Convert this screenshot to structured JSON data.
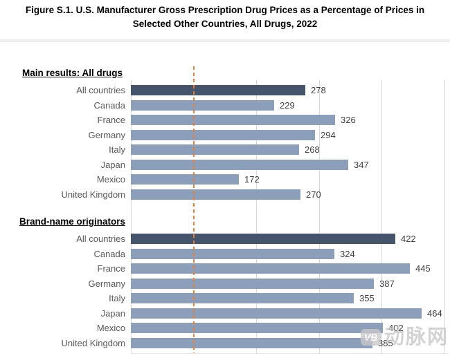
{
  "title": {
    "line1": "Figure S.1. U.S. Manufacturer Gross Prescription Drug Prices as a Percentage of Prices in",
    "line2": "Selected Other Countries, All Drugs, 2022"
  },
  "colors": {
    "dark_bar": "#44546a",
    "light_bar": "#8c9fba",
    "reference_line": "#ed7d31",
    "gridline": "#d9d9d9",
    "category_label_text": "#595959",
    "value_label_text": "#404040"
  },
  "chart_data": {
    "type": "bar",
    "orientation": "horizontal",
    "title": "Figure S.1. U.S. Manufacturer Gross Prescription Drug Prices as a Percentage of Prices in Selected Other Countries, All Drugs, 2022",
    "xlabel": "",
    "ylabel": "",
    "xlim": [
      0,
      500
    ],
    "grid": true,
    "axis": {
      "min": 0,
      "max": 500,
      "gridline_values": [
        200,
        300,
        400,
        500
      ],
      "reference_line_value": 100
    },
    "sections": [
      {
        "heading": "Main results: All drugs",
        "rows": [
          {
            "label": "All countries",
            "value": 278,
            "emphasis": true
          },
          {
            "label": "Canada",
            "value": 229,
            "emphasis": false
          },
          {
            "label": "France",
            "value": 326,
            "emphasis": false
          },
          {
            "label": "Germany",
            "value": 294,
            "emphasis": false
          },
          {
            "label": "Italy",
            "value": 268,
            "emphasis": false
          },
          {
            "label": "Japan",
            "value": 347,
            "emphasis": false
          },
          {
            "label": "Mexico",
            "value": 172,
            "emphasis": false
          },
          {
            "label": "United Kingdom",
            "value": 270,
            "emphasis": false
          }
        ]
      },
      {
        "heading": "Brand-name originators",
        "rows": [
          {
            "label": "All countries",
            "value": 422,
            "emphasis": true
          },
          {
            "label": "Canada",
            "value": 324,
            "emphasis": false
          },
          {
            "label": "France",
            "value": 445,
            "emphasis": false
          },
          {
            "label": "Germany",
            "value": 387,
            "emphasis": false
          },
          {
            "label": "Italy",
            "value": 355,
            "emphasis": false
          },
          {
            "label": "Japan",
            "value": 464,
            "emphasis": false
          },
          {
            "label": "Mexico",
            "value": 402,
            "emphasis": false
          },
          {
            "label": "United Kingdom",
            "value": 385,
            "emphasis": false
          }
        ]
      }
    ]
  },
  "watermark": {
    "logo": "VB",
    "text": "动脉网"
  }
}
